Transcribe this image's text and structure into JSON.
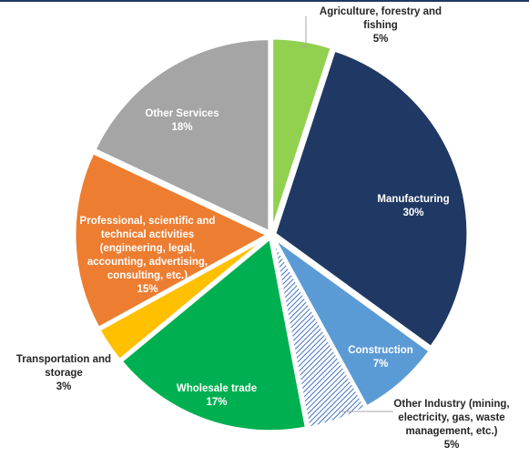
{
  "chart_data": {
    "type": "pie",
    "title": "",
    "slices": [
      {
        "label": "Agriculture, forestry and fishing",
        "value": 5,
        "value_label": "5%",
        "color": "#92d050",
        "label_color": "#262626",
        "label_lines": [
          "Agriculture, forestry and",
          "fishing",
          "5%"
        ]
      },
      {
        "label": "Manufacturing",
        "value": 30,
        "value_label": "30%",
        "color": "#203864",
        "label_color": "#ffffff",
        "label_lines": [
          "Manufacturing",
          "30%"
        ]
      },
      {
        "label": "Construction",
        "value": 7,
        "value_label": "7%",
        "color": "#5b9bd5",
        "label_color": "#ffffff",
        "label_lines": [
          "Construction",
          "7%"
        ]
      },
      {
        "label": "Other Industry (mining, electricity, gas, waste management, etc.)",
        "value": 5,
        "value_label": "5%",
        "color": "#8faadc",
        "pattern": "diagonal-hatch",
        "label_color": "#262626",
        "label_lines": [
          "Other Industry (mining,",
          "electricity, gas, waste",
          "management, etc.)",
          "5%"
        ]
      },
      {
        "label": "Wholesale trade",
        "value": 17,
        "value_label": "17%",
        "color": "#00b050",
        "label_color": "#ffffff",
        "label_lines": [
          "Wholesale trade",
          "17%"
        ]
      },
      {
        "label": "Transportation and storage",
        "value": 3,
        "value_label": "3%",
        "color": "#ffc000",
        "label_color": "#262626",
        "label_lines": [
          "Transportation and",
          "storage",
          "3%"
        ]
      },
      {
        "label": "Professional, scientific and technical activities (engineering, legal, accounting, advertising, consulting, etc.)",
        "value": 15,
        "value_label": "15%",
        "color": "#ed7d31",
        "label_color": "#ffffff",
        "label_lines": [
          "Professional, scientific and",
          "technical activities",
          "(engineering, legal,",
          "accounting, advertising,",
          "consulting, etc.)",
          "15%"
        ]
      },
      {
        "label": "Other Services",
        "value": 18,
        "value_label": "18%",
        "color": "#a5a5a5",
        "label_color": "#ffffff",
        "label_lines": [
          "Other Services",
          "18%"
        ]
      }
    ],
    "legend": "none",
    "data_labels": "category name and percentage"
  }
}
